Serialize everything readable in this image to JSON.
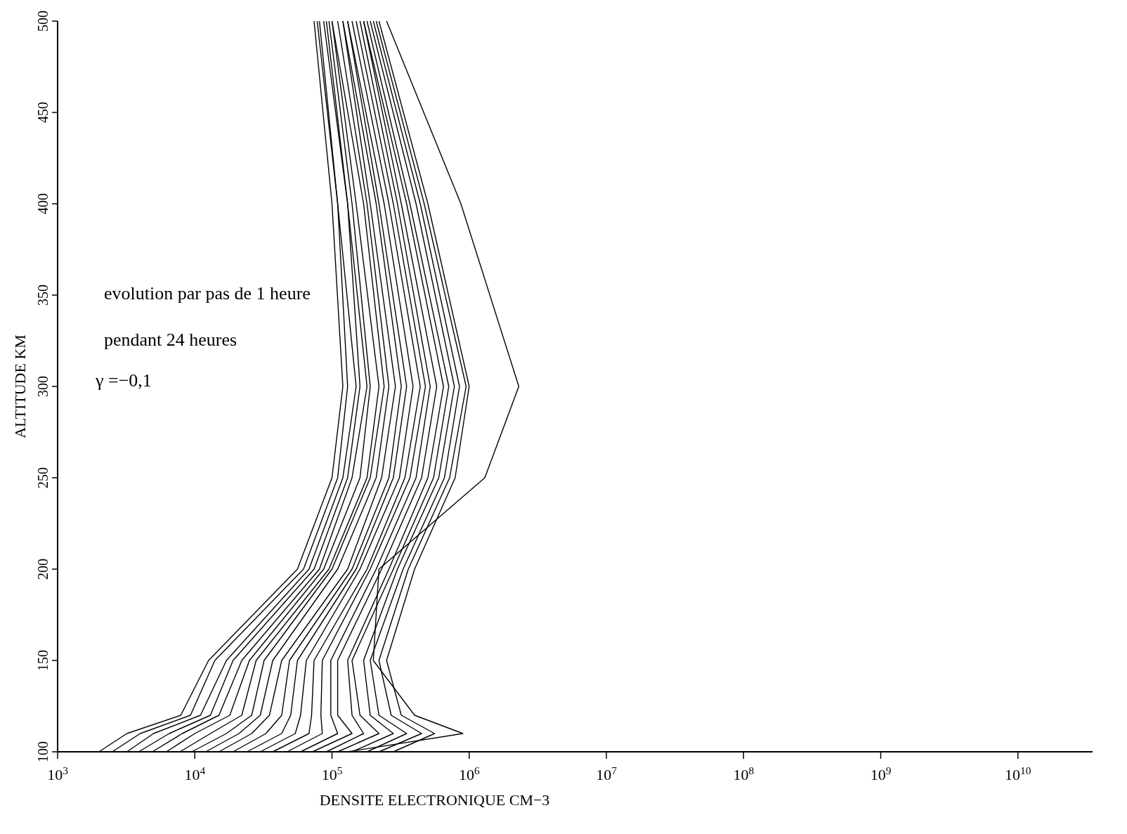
{
  "chart_data": {
    "type": "line",
    "xlabel": "DENSITE ELECTRONIQUE CM−3",
    "ylabel": "ALTITUDE  KM",
    "log": "x",
    "grid": false,
    "marker": "none",
    "line_style": "solid",
    "xlim": [
      1000,
      35000000000
    ],
    "ylim": [
      100,
      500
    ],
    "xticks": [
      {
        "value": 1000,
        "label": "10$^{3}$"
      },
      {
        "value": 10000,
        "label": "10$^{4}$"
      },
      {
        "value": 100000,
        "label": "10$^{5}$"
      },
      {
        "value": 1000000,
        "label": "10$^{6}$"
      },
      {
        "value": 10000000,
        "label": "10$^{7}$"
      },
      {
        "value": 100000000,
        "label": "10$^{8}$"
      },
      {
        "value": 1000000000,
        "label": "10$^{9}$"
      },
      {
        "value": 10000000000,
        "label": "10$^{10}$"
      }
    ],
    "yticks": [
      100,
      150,
      200,
      250,
      300,
      350,
      400,
      450,
      500
    ],
    "annotations": [
      "evolution par pas de 1 heure",
      "pendant 24 heures",
      "γ =−0,1"
    ],
    "series": [
      {
        "color": "#000000",
        "values": [
          100,
          110,
          120,
          150,
          200,
          250,
          300,
          400,
          500
        ],
        "x": [
          2000,
          3200,
          7900,
          12600,
          56000,
          100000,
          120000,
          100000,
          74000
        ]
      },
      {
        "color": "#000000",
        "values": [
          100,
          110,
          120,
          150,
          200,
          250,
          300,
          400,
          500
        ],
        "x": [
          2500,
          4000,
          9300,
          14000,
          62000,
          110000,
          130000,
          110000,
          78000
        ]
      },
      {
        "color": "#000000",
        "values": [
          100,
          110,
          120,
          150,
          200,
          250,
          300,
          400,
          500
        ],
        "x": [
          3200,
          5000,
          11000,
          17000,
          68000,
          120000,
          150000,
          110000,
          81000
        ]
      },
      {
        "color": "#000000",
        "values": [
          100,
          110,
          120,
          150,
          200,
          250,
          300,
          400,
          500
        ],
        "x": [
          3900,
          6500,
          13000,
          19000,
          74000,
          130000,
          160000,
          130000,
          87000
        ]
      },
      {
        "color": "#000000",
        "values": [
          100,
          110,
          120,
          150,
          200,
          250,
          300,
          400,
          500
        ],
        "x": [
          4900,
          8100,
          15000,
          22000,
          81000,
          140000,
          180000,
          130000,
          91000
        ]
      },
      {
        "color": "#000000",
        "values": [
          100,
          110,
          120,
          150,
          200,
          250,
          300,
          400,
          500
        ],
        "x": [
          6200,
          10000,
          18000,
          25000,
          87000,
          160000,
          190000,
          140000,
          95000
        ]
      },
      {
        "color": "#000000",
        "values": [
          100,
          110,
          120,
          150,
          200,
          250,
          300,
          400,
          500
        ],
        "x": [
          7800,
          13000,
          22000,
          28000,
          95000,
          180000,
          220000,
          150000,
          100000
        ]
      },
      {
        "color": "#000000",
        "values": [
          100,
          110,
          120,
          150,
          200,
          250,
          300,
          400,
          500
        ],
        "x": [
          9500,
          17000,
          26000,
          32000,
          100000,
          190000,
          240000,
          170000,
          100000
        ]
      },
      {
        "color": "#000000",
        "values": [
          100,
          110,
          120,
          150,
          200,
          250,
          300,
          400,
          500
        ],
        "x": [
          12000,
          21000,
          30000,
          37000,
          110000,
          210000,
          260000,
          180000,
          110000
        ]
      },
      {
        "color": "#000000",
        "values": [
          100,
          110,
          120,
          150,
          200,
          250,
          300,
          400,
          500
        ],
        "x": [
          15000,
          26000,
          35000,
          43000,
          130000,
          230000,
          290000,
          190000,
          120000
        ]
      },
      {
        "color": "#000000",
        "values": [
          100,
          110,
          120,
          150,
          200,
          250,
          300,
          400,
          500
        ],
        "x": [
          19000,
          33000,
          43000,
          49000,
          140000,
          260000,
          320000,
          210000,
          120000
        ]
      },
      {
        "color": "#000000",
        "values": [
          100,
          110,
          120,
          150,
          200,
          250,
          300,
          400,
          500
        ],
        "x": [
          24000,
          43000,
          50000,
          56000,
          150000,
          280000,
          350000,
          220000,
          130000
        ]
      },
      {
        "color": "#000000",
        "values": [
          100,
          110,
          120,
          150,
          200,
          250,
          300,
          400,
          500
        ],
        "x": [
          30000,
          54000,
          59000,
          65000,
          160000,
          310000,
          390000,
          240000,
          130000
        ]
      },
      {
        "color": "#000000",
        "values": [
          100,
          110,
          120,
          150,
          200,
          250,
          300,
          400,
          500
        ],
        "x": [
          37000,
          68000,
          71000,
          74000,
          180000,
          340000,
          440000,
          260000,
          140000
        ]
      },
      {
        "color": "#000000",
        "values": [
          100,
          110,
          120,
          150,
          200,
          250,
          300,
          400,
          500
        ],
        "x": [
          47000,
          85000,
          83000,
          85000,
          190000,
          370000,
          480000,
          280000,
          150000
        ]
      },
      {
        "color": "#000000",
        "values": [
          100,
          110,
          120,
          150,
          200,
          250,
          300,
          400,
          500
        ],
        "x": [
          59000,
          110000,
          98000,
          98000,
          210000,
          410000,
          520000,
          300000,
          160000
        ]
      },
      {
        "color": "#000000",
        "values": [
          100,
          110,
          120,
          150,
          200,
          250,
          300,
          400,
          500
        ],
        "x": [
          72000,
          140000,
          110000,
          110000,
          230000,
          450000,
          580000,
          320000,
          170000
        ]
      },
      {
        "color": "#000000",
        "values": [
          100,
          110,
          120,
          150,
          200,
          250,
          300,
          400,
          500
        ],
        "x": [
          91000,
          170000,
          140000,
          130000,
          260000,
          500000,
          650000,
          350000,
          170000
        ]
      },
      {
        "color": "#000000",
        "values": [
          100,
          110,
          120,
          150,
          200,
          250,
          300,
          400,
          500
        ],
        "x": [
          110000,
          220000,
          160000,
          140000,
          280000,
          550000,
          710000,
          370000,
          180000
        ]
      },
      {
        "color": "#000000",
        "values": [
          100,
          110,
          120,
          150,
          200,
          250,
          300,
          400,
          500
        ],
        "x": [
          140000,
          280000,
          190000,
          170000,
          300000,
          600000,
          780000,
          410000,
          190000
        ]
      },
      {
        "color": "#000000",
        "values": [
          100,
          110,
          120,
          150,
          200,
          250,
          300,
          400,
          500
        ],
        "x": [
          180000,
          350000,
          220000,
          190000,
          330000,
          660000,
          850000,
          440000,
          200000
        ]
      },
      {
        "color": "#000000",
        "values": [
          100,
          110,
          120,
          150,
          200,
          250,
          300,
          400,
          500
        ],
        "x": [
          220000,
          450000,
          270000,
          220000,
          360000,
          720000,
          950000,
          470000,
          210000
        ]
      },
      {
        "color": "#000000",
        "values": [
          100,
          110,
          120,
          150,
          200,
          250,
          300,
          400,
          500
        ],
        "x": [
          280000,
          560000,
          320000,
          250000,
          400000,
          790000,
          1000000,
          500000,
          220000
        ]
      },
      {
        "color": "#000000",
        "values": [
          100,
          110,
          120,
          150,
          200,
          250,
          300,
          400,
          500
        ],
        "x": [
          130000,
          900000,
          400000,
          200000,
          220000,
          1300000,
          2300000,
          870000,
          250000
        ]
      }
    ]
  }
}
